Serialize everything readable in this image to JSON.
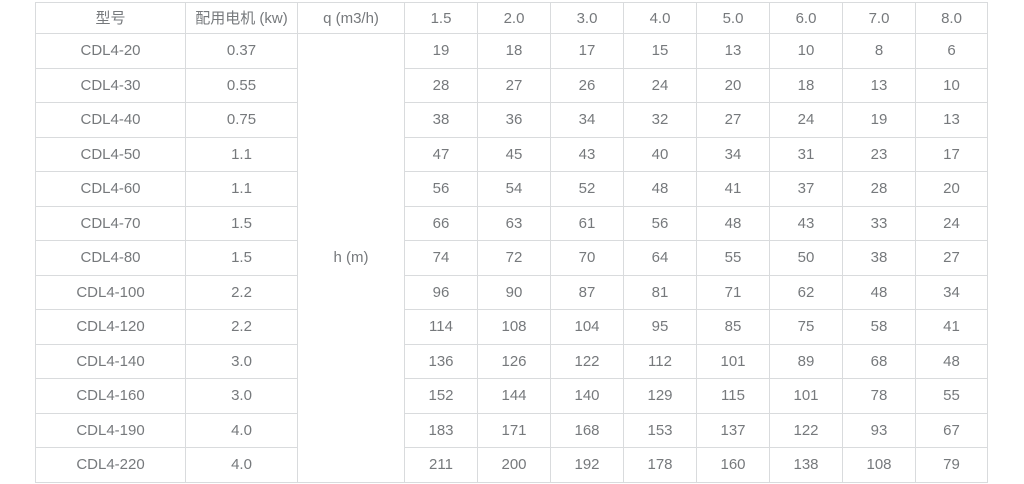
{
  "chart_data": {
    "type": "table",
    "title": "",
    "columns": [
      "型号",
      "配用电机 (kw)",
      "q (m3/h)",
      "1.5",
      "2.0",
      "3.0",
      "4.0",
      "5.0",
      "6.0",
      "7.0",
      "8.0"
    ],
    "merged_row_label": "h (m)",
    "rows": [
      [
        "CDL4-20",
        "0.37",
        "h (m)",
        19,
        18,
        17,
        15,
        13,
        10,
        8,
        6
      ],
      [
        "CDL4-30",
        "0.55",
        "h (m)",
        28,
        27,
        26,
        24,
        20,
        18,
        13,
        10
      ],
      [
        "CDL4-40",
        "0.75",
        "h (m)",
        38,
        36,
        34,
        32,
        27,
        24,
        19,
        13
      ],
      [
        "CDL4-50",
        "1.1",
        "h (m)",
        47,
        45,
        43,
        40,
        34,
        31,
        23,
        17
      ],
      [
        "CDL4-60",
        "1.1",
        "h (m)",
        56,
        54,
        52,
        48,
        41,
        37,
        28,
        20
      ],
      [
        "CDL4-70",
        "1.5",
        "h (m)",
        66,
        63,
        61,
        56,
        48,
        43,
        33,
        24
      ],
      [
        "CDL4-80",
        "1.5",
        "h (m)",
        74,
        72,
        70,
        64,
        55,
        50,
        38,
        27
      ],
      [
        "CDL4-100",
        "2.2",
        "h (m)",
        96,
        90,
        87,
        81,
        71,
        62,
        48,
        34
      ],
      [
        "CDL4-120",
        "2.2",
        "h (m)",
        114,
        108,
        104,
        95,
        85,
        75,
        58,
        41
      ],
      [
        "CDL4-140",
        "3.0",
        "h (m)",
        136,
        126,
        122,
        112,
        101,
        89,
        68,
        48
      ],
      [
        "CDL4-160",
        "3.0",
        "h (m)",
        152,
        144,
        140,
        129,
        115,
        101,
        78,
        55
      ],
      [
        "CDL4-190",
        "4.0",
        "h (m)",
        183,
        171,
        168,
        153,
        137,
        122,
        93,
        67
      ],
      [
        "CDL4-220",
        "4.0",
        "h (m)",
        211,
        200,
        192,
        178,
        160,
        138,
        108,
        79
      ]
    ]
  },
  "table": {
    "headers": {
      "model": "型号",
      "motor": "配用电机 (kw)",
      "flow": "q (m3/h)",
      "flow_values": [
        "1.5",
        "2.0",
        "3.0",
        "4.0",
        "5.0",
        "6.0",
        "7.0",
        "8.0"
      ]
    },
    "merged_cell": "h (m)",
    "rows": [
      {
        "model": "CDL4-20",
        "motor": "0.37",
        "values": [
          "19",
          "18",
          "17",
          "15",
          "13",
          "10",
          "8",
          "6"
        ]
      },
      {
        "model": "CDL4-30",
        "motor": "0.55",
        "values": [
          "28",
          "27",
          "26",
          "24",
          "20",
          "18",
          "13",
          "10"
        ]
      },
      {
        "model": "CDL4-40",
        "motor": "0.75",
        "values": [
          "38",
          "36",
          "34",
          "32",
          "27",
          "24",
          "19",
          "13"
        ]
      },
      {
        "model": "CDL4-50",
        "motor": "1.1",
        "values": [
          "47",
          "45",
          "43",
          "40",
          "34",
          "31",
          "23",
          "17"
        ]
      },
      {
        "model": "CDL4-60",
        "motor": "1.1",
        "values": [
          "56",
          "54",
          "52",
          "48",
          "41",
          "37",
          "28",
          "20"
        ]
      },
      {
        "model": "CDL4-70",
        "motor": "1.5",
        "values": [
          "66",
          "63",
          "61",
          "56",
          "48",
          "43",
          "33",
          "24"
        ]
      },
      {
        "model": "CDL4-80",
        "motor": "1.5",
        "values": [
          "74",
          "72",
          "70",
          "64",
          "55",
          "50",
          "38",
          "27"
        ]
      },
      {
        "model": "CDL4-100",
        "motor": "2.2",
        "values": [
          "96",
          "90",
          "87",
          "81",
          "71",
          "62",
          "48",
          "34"
        ]
      },
      {
        "model": "CDL4-120",
        "motor": "2.2",
        "values": [
          "114",
          "108",
          "104",
          "95",
          "85",
          "75",
          "58",
          "41"
        ]
      },
      {
        "model": "CDL4-140",
        "motor": "3.0",
        "values": [
          "136",
          "126",
          "122",
          "112",
          "101",
          "89",
          "68",
          "48"
        ]
      },
      {
        "model": "CDL4-160",
        "motor": "3.0",
        "values": [
          "152",
          "144",
          "140",
          "129",
          "115",
          "101",
          "78",
          "55"
        ]
      },
      {
        "model": "CDL4-190",
        "motor": "4.0",
        "values": [
          "183",
          "171",
          "168",
          "153",
          "137",
          "122",
          "93",
          "67"
        ]
      },
      {
        "model": "CDL4-220",
        "motor": "4.0",
        "values": [
          "211",
          "200",
          "192",
          "178",
          "160",
          "138",
          "108",
          "79"
        ]
      }
    ],
    "colors": {
      "border": "#d9dbdd",
      "text": "#76797c",
      "background": "#ffffff"
    }
  }
}
